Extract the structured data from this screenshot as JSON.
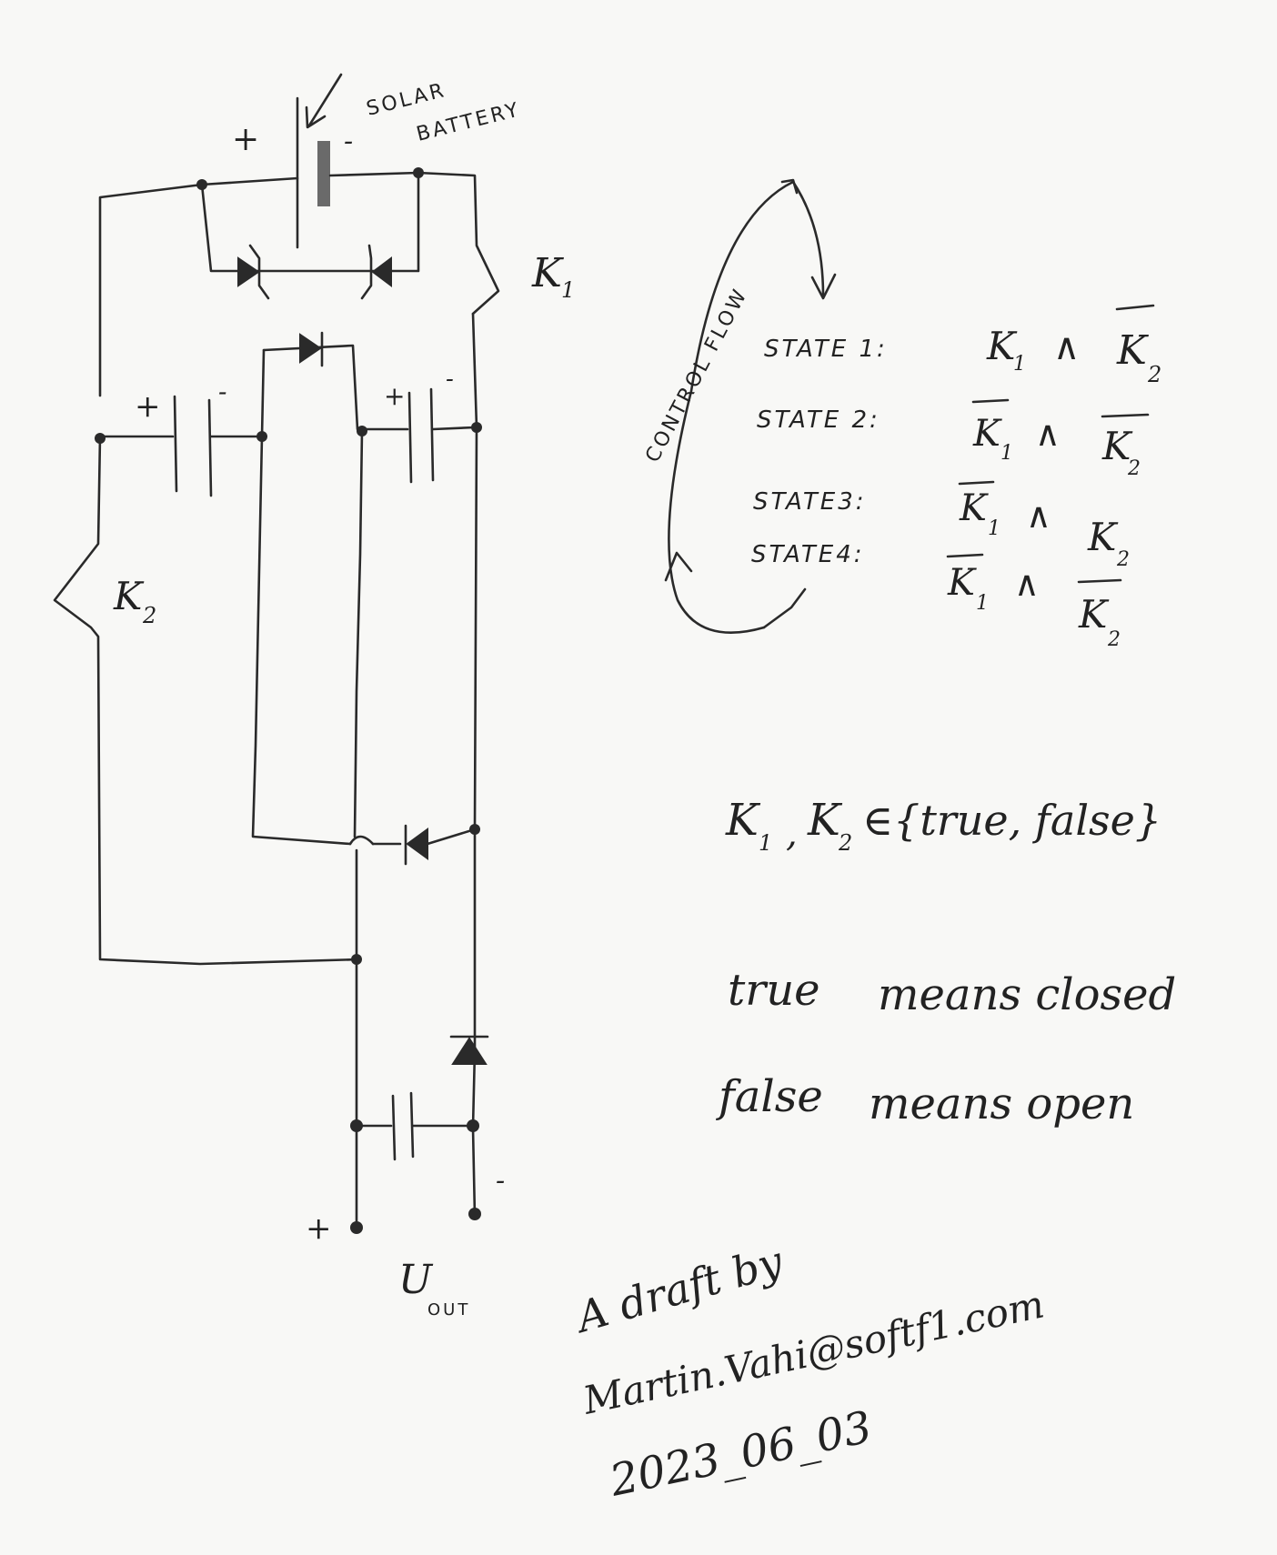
{
  "battery": {
    "title_line1": "SOLAR",
    "title_line2": "BATTERY",
    "plus": "+",
    "minus": "-"
  },
  "switches": {
    "k1": "K",
    "k1_sub": "1",
    "k2": "K",
    "k2_sub": "2"
  },
  "capacitors": {
    "left_plus": "+",
    "left_minus": "-",
    "right_plus": "+",
    "right_minus": "-"
  },
  "output": {
    "plus": "+",
    "minus": "-",
    "label": "U",
    "label_sub": "OUT"
  },
  "control_flow": {
    "label": "CONTROL FLOW",
    "states": [
      {
        "label": "STATE 1:",
        "a": "K",
        "a_sub": "1",
        "op": "∧",
        "b": "K",
        "b_sub": "2"
      },
      {
        "label": "STATE 2:",
        "a": "K",
        "a_sub": "1",
        "op": "∧",
        "b": "K",
        "b_sub": "2"
      },
      {
        "label": "STATE3:",
        "a": "K",
        "a_sub": "1",
        "op": "∧",
        "b": "K",
        "b_sub": "2"
      },
      {
        "label": "STATE4:",
        "a": "K",
        "a_sub": "1",
        "op": "∧",
        "b": "K",
        "b_sub": "2"
      }
    ]
  },
  "domain_note": {
    "k1": "K",
    "k1_sub": "1",
    "comma": ",",
    "k2": "K",
    "k2_sub": "2",
    "rest": "∈{true, false}"
  },
  "legend": {
    "line1_a": "true",
    "line1_b": "means closed",
    "line2_a": "false",
    "line2_b": "means open"
  },
  "signature": {
    "line1": "A draft by",
    "line2": "Martin.Vahi@softf1.com",
    "line3": "2023_06_03"
  }
}
